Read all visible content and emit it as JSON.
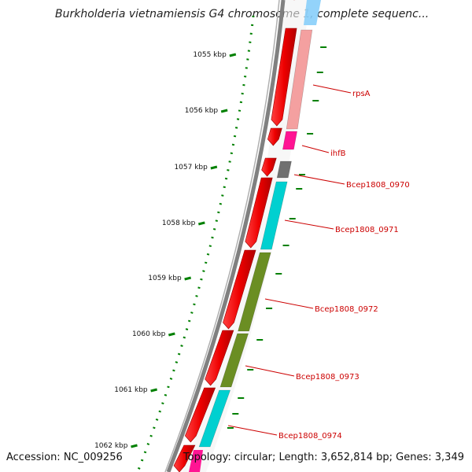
{
  "title": "Burkholderia vietnamiensis G4 chromosome 1, complete sequenc...",
  "accession": "Accession: NC_009256",
  "summary": "Topology: circular; Length: 3,652,814 bp; Genes: 3,349",
  "ticks": [
    {
      "label": "1055 kbp"
    },
    {
      "label": "1056 kbp"
    },
    {
      "label": "1057 kbp"
    },
    {
      "label": "1058 kbp"
    },
    {
      "label": "1059 kbp"
    },
    {
      "label": "1060 kbp"
    },
    {
      "label": "1061 kbp"
    },
    {
      "label": "1062 kbp"
    }
  ],
  "genes": [
    {
      "label": "rpsA",
      "color": "#f4a0a0"
    },
    {
      "label": "ihfB",
      "color": "#ff1493"
    },
    {
      "label": "Bcep1808_0970",
      "color": "#707070"
    },
    {
      "label": "Bcep1808_0971",
      "color": "#00d0d0"
    },
    {
      "label": "Bcep1808_0972",
      "color": "#6b8e23"
    },
    {
      "label": "Bcep1808_0973",
      "color": "#6b8e23"
    },
    {
      "label": "Bcep1808_0974",
      "color": "#00d0d0"
    }
  ],
  "colors": {
    "cds": "#ee0000",
    "backbone": "#808080",
    "tick": "#008000",
    "label": "#cc0000"
  }
}
